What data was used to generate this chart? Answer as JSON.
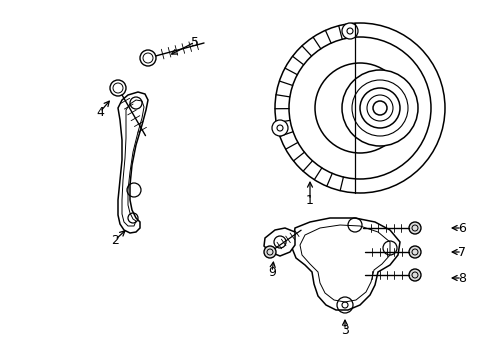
{
  "bg_color": "#ffffff",
  "line_color": "#000000",
  "fig_width": 4.89,
  "fig_height": 3.6,
  "dpi": 100,
  "label_fontsize": 9,
  "lw_main": 1.1,
  "lw_thin": 0.7
}
